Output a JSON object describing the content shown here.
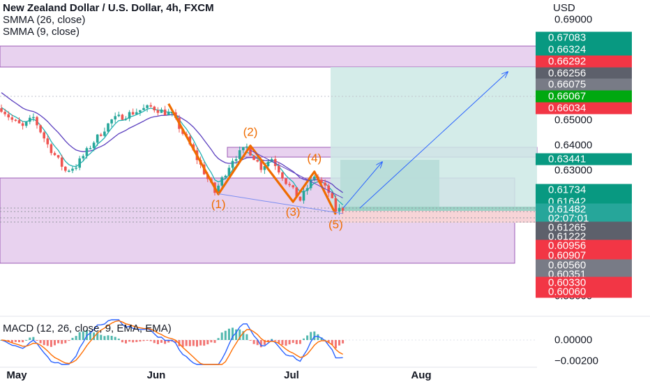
{
  "legend": {
    "title": "New Zealand Dollar / U.S. Dollar, 4h, FXCM",
    "smma26": "SMMA (26, close)",
    "smma9": "SMMA (9, close)"
  },
  "currency": "USD",
  "macd_label": "MACD (12, 26, close, 9, EMA, EMA)",
  "colors": {
    "up_candle": "#26a69a",
    "down_candle": "#ef5350",
    "smma26": "#5b3fbf",
    "smma9": "#22b2b2",
    "wave": "#ef6c00",
    "zone_fill": "#e8d2ef",
    "zone_border": "#9b59b6",
    "target_fill": "#cce9e5",
    "stop_fill": "#f7d4d7",
    "projection": "#2962ff",
    "macd_line": "#2962ff",
    "signal_line": "#ff6d00"
  },
  "chart_data": {
    "type": "candlestick",
    "symbol": "NZDUSD",
    "timeframe": "4h",
    "y_axis": {
      "ticks": [
        "0.69000",
        "0.65000",
        "0.64000",
        "0.63000",
        "0.58000"
      ],
      "range": [
        0.585,
        0.692
      ]
    },
    "x_axis": {
      "ticks": [
        "May",
        "Jun",
        "Jul",
        "Aug"
      ]
    },
    "price_path": [
      {
        "t": 0,
        "p": 0.6547
      },
      {
        "t": 3,
        "p": 0.65
      },
      {
        "t": 6,
        "p": 0.6472
      },
      {
        "t": 9,
        "p": 0.651
      },
      {
        "t": 13,
        "p": 0.6402
      },
      {
        "t": 18,
        "p": 0.6298
      },
      {
        "t": 21,
        "p": 0.6318
      },
      {
        "t": 26,
        "p": 0.6415
      },
      {
        "t": 31,
        "p": 0.65
      },
      {
        "t": 35,
        "p": 0.652
      },
      {
        "t": 39,
        "p": 0.654
      },
      {
        "t": 42,
        "p": 0.6552
      },
      {
        "t": 48,
        "p": 0.652
      },
      {
        "t": 53,
        "p": 0.64
      },
      {
        "t": 60,
        "p": 0.6212
      },
      {
        "t": 65,
        "p": 0.6345
      },
      {
        "t": 69,
        "p": 0.6392
      },
      {
        "t": 73,
        "p": 0.6312
      },
      {
        "t": 76,
        "p": 0.6348
      },
      {
        "t": 80,
        "p": 0.6255
      },
      {
        "t": 84,
        "p": 0.6182
      },
      {
        "t": 88,
        "p": 0.628
      },
      {
        "t": 92,
        "p": 0.6212
      },
      {
        "t": 94,
        "p": 0.614
      },
      {
        "t": 96,
        "p": 0.6148
      }
    ],
    "elliott_wave": [
      {
        "t": 47,
        "p": 0.6565,
        "label": ""
      },
      {
        "t": 61,
        "p": 0.6205,
        "label": "(1)"
      },
      {
        "t": 70,
        "p": 0.6398,
        "label": "(2)"
      },
      {
        "t": 82,
        "p": 0.6175,
        "label": "(3)"
      },
      {
        "t": 88,
        "p": 0.6295,
        "label": "(4)"
      },
      {
        "t": 94,
        "p": 0.6125,
        "label": "(5)"
      }
    ],
    "price_tags": [
      {
        "value": "0.67083",
        "color": "#089981"
      },
      {
        "value": "0.66324",
        "color": "#089981"
      },
      {
        "value": "0.66292",
        "color": "#f23645"
      },
      {
        "value": "0.66256",
        "color": "#5d606b"
      },
      {
        "value": "0.66075",
        "color": "#787b86"
      },
      {
        "value": "0.66067",
        "color": "#00a810"
      },
      {
        "value": "0.66034",
        "color": "#f23645"
      },
      {
        "value": "0.63441",
        "color": "#089981"
      },
      {
        "value": "0.61734",
        "color": "#089981"
      },
      {
        "value": "0.61642",
        "color": "#089981"
      },
      {
        "value": "0.61482",
        "color": "#26a69a"
      },
      {
        "value": "02:07:01",
        "color": "#26a69a"
      },
      {
        "value": "0.61265",
        "color": "#5d606b"
      },
      {
        "value": "0.61222",
        "color": "#5d606b"
      },
      {
        "value": "0.60956",
        "color": "#f23645"
      },
      {
        "value": "0.60907",
        "color": "#f23645"
      },
      {
        "value": "0.60560",
        "color": "#787b86"
      },
      {
        "value": "0.60351",
        "color": "#787b86"
      },
      {
        "value": "0.60330",
        "color": "#f23645"
      },
      {
        "value": "0.60060",
        "color": "#f23645"
      }
    ],
    "macd": {
      "ticks": [
        "0.00000",
        "−0.00200"
      ],
      "range": [
        -0.0026,
        0.0012
      ]
    }
  }
}
